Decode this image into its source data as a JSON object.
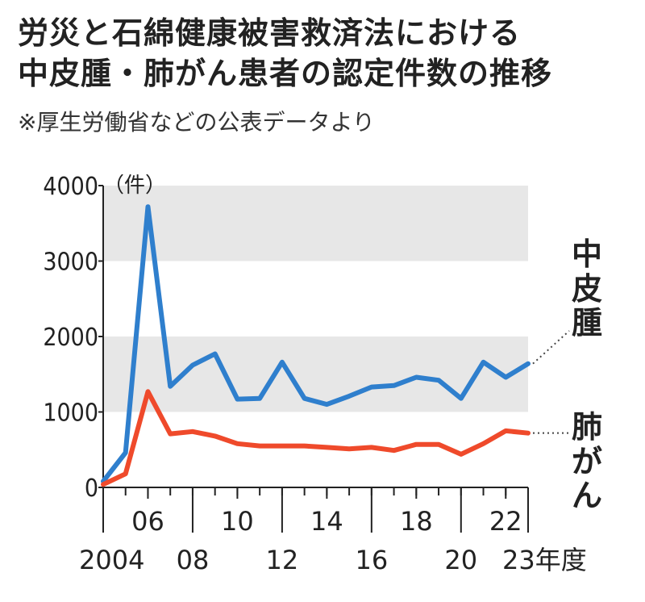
{
  "header": {
    "title_line1": "労災と石綿健康被害救済法における",
    "title_line2": "中皮腫・肺がん患者の認定件数の推移",
    "source": "※厚生労働省などの公表データより"
  },
  "chart_data": {
    "type": "line",
    "unit_label": "（件）",
    "x": [
      2004,
      2005,
      2006,
      2007,
      2008,
      2009,
      2010,
      2011,
      2012,
      2013,
      2014,
      2015,
      2016,
      2017,
      2018,
      2019,
      2020,
      2021,
      2022,
      2023
    ],
    "x_tick_labels": [
      {
        "year": 2004,
        "label": "2004",
        "row": "lower"
      },
      {
        "year": 2006,
        "label": "06",
        "row": "upper"
      },
      {
        "year": 2008,
        "label": "08",
        "row": "lower"
      },
      {
        "year": 2010,
        "label": "10",
        "row": "upper"
      },
      {
        "year": 2012,
        "label": "12",
        "row": "lower"
      },
      {
        "year": 2014,
        "label": "14",
        "row": "upper"
      },
      {
        "year": 2016,
        "label": "16",
        "row": "lower"
      },
      {
        "year": 2018,
        "label": "18",
        "row": "upper"
      },
      {
        "year": 2020,
        "label": "20",
        "row": "lower"
      },
      {
        "year": 2022,
        "label": "22",
        "row": "upper"
      },
      {
        "year": 2023,
        "label": "23年度",
        "row": "lower"
      }
    ],
    "y_ticks": [
      "0",
      "1000",
      "2000",
      "3000",
      "4000"
    ],
    "ylim": [
      0,
      4000
    ],
    "bands": [
      [
        1000,
        2000
      ],
      [
        3000,
        4000
      ]
    ],
    "series": [
      {
        "name": "中皮腫",
        "color": "#2f7fcd",
        "values": [
          80,
          460,
          3720,
          1340,
          1620,
          1770,
          1170,
          1180,
          1660,
          1180,
          1100,
          1210,
          1330,
          1350,
          1460,
          1420,
          1180,
          1660,
          1460,
          1640
        ]
      },
      {
        "name": "肺がん",
        "color": "#ef4a2b",
        "values": [
          40,
          180,
          1270,
          710,
          740,
          680,
          580,
          550,
          550,
          550,
          530,
          510,
          530,
          490,
          570,
          570,
          440,
          580,
          750,
          720
        ]
      }
    ]
  }
}
